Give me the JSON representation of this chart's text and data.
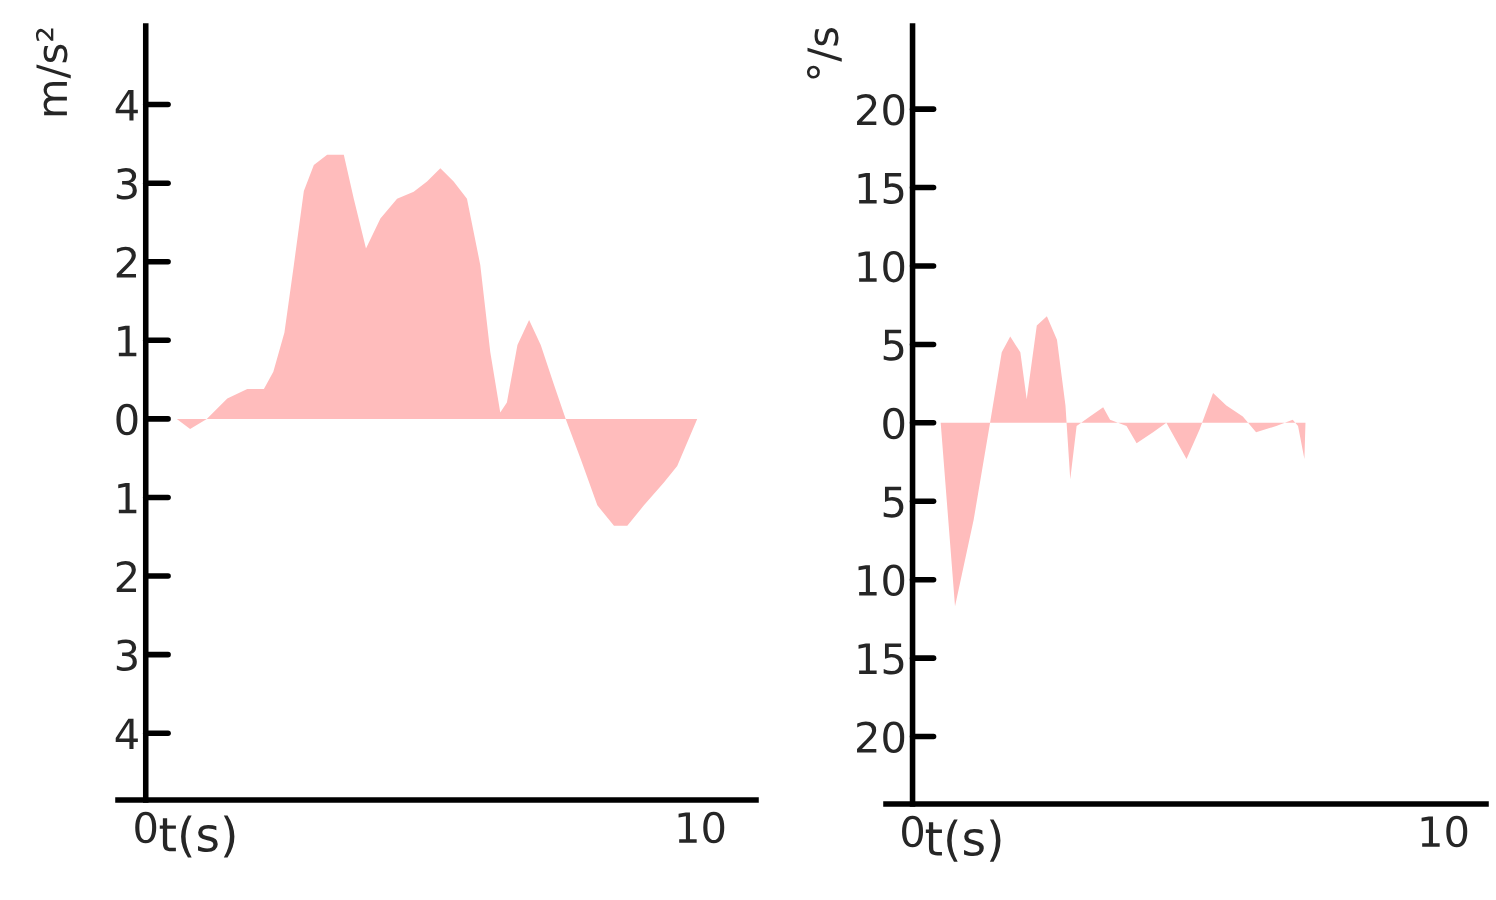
{
  "chart_data": [
    {
      "type": "area",
      "xlabel": "t(s)",
      "ylabel": "m/s²",
      "x": [
        0.56,
        0.8,
        1.1,
        1.47,
        1.83,
        2.13,
        2.3,
        2.5,
        2.67,
        2.85,
        3.03,
        3.27,
        3.57,
        3.75,
        3.97,
        4.23,
        4.53,
        4.83,
        5.07,
        5.31,
        5.55,
        5.79,
        6.03,
        6.21,
        6.39,
        6.51,
        6.7,
        6.91,
        7.12,
        7.36,
        7.57,
        7.84,
        8.14,
        8.44,
        8.68,
        8.98,
        9.34,
        9.58,
        9.94,
        10.1
      ],
      "series": [
        {
          "color": "#ffbcbc",
          "values": [
            0,
            -0.13,
            0,
            0.26,
            0.38,
            0.38,
            0.6,
            1.1,
            1.96,
            2.9,
            3.23,
            3.36,
            3.36,
            2.8,
            2.17,
            2.55,
            2.8,
            2.89,
            3.02,
            3.19,
            3.02,
            2.8,
            1.96,
            0.85,
            0.08,
            0.21,
            0.94,
            1.26,
            0.94,
            0.43,
            0,
            -0.51,
            -1.1,
            -1.36,
            -1.36,
            -1.1,
            -0.81,
            -0.6,
            0,
            0
          ]
        }
      ],
      "xlim": [
        -0.5,
        11
      ],
      "xticks": [
        0,
        10
      ],
      "ylim": [
        -4.85,
        5.0
      ],
      "yticks": [
        {
          "value": -4,
          "label": "4"
        },
        {
          "value": -3,
          "label": "3"
        },
        {
          "value": -2,
          "label": "2"
        },
        {
          "value": -1,
          "label": "1"
        },
        0,
        1,
        2,
        3,
        4
      ],
      "grid": false,
      "legend": false
    },
    {
      "type": "area",
      "xlabel": "t(s)",
      "ylabel": "°/s",
      "x": [
        0.53,
        0.8,
        1.15,
        1.46,
        1.68,
        1.84,
        2.03,
        2.15,
        2.34,
        2.53,
        2.72,
        2.88,
        2.97,
        3.09,
        3.34,
        3.59,
        3.72,
        4.03,
        4.22,
        4.53,
        4.78,
        5.16,
        5.41,
        5.66,
        5.91,
        6.22,
        6.47,
        6.85,
        7.16,
        7.26,
        7.38,
        7.4
      ],
      "series": [
        {
          "color": "#ffbcbc",
          "values": [
            0,
            -11.7,
            -6.2,
            0,
            4.5,
            5.5,
            4.5,
            1.5,
            6.2,
            6.8,
            5.3,
            1.1,
            -3.6,
            -0.2,
            0.4,
            1,
            0.2,
            -0.2,
            -1.3,
            -0.6,
            0,
            -2.3,
            -0.4,
            1.9,
            1.1,
            0.4,
            -0.6,
            -0.2,
            0.2,
            -0.2,
            -2.3,
            0
          ]
        }
      ],
      "xlim": [
        -0.5,
        10.8
      ],
      "xticks": [
        0,
        10
      ],
      "ylim": [
        -24.3,
        25.3
      ],
      "yticks": [
        {
          "value": -20,
          "label": "20"
        },
        {
          "value": -15,
          "label": "15"
        },
        {
          "value": -10,
          "label": "10"
        },
        {
          "value": -5,
          "label": "5"
        },
        0,
        5,
        10,
        15,
        20
      ],
      "grid": false,
      "legend": false
    }
  ]
}
